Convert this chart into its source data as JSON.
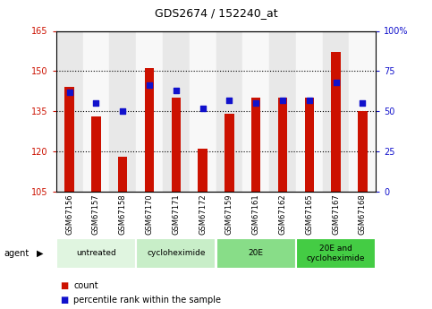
{
  "title": "GDS2674 / 152240_at",
  "samples": [
    "GSM67156",
    "GSM67157",
    "GSM67158",
    "GSM67170",
    "GSM67171",
    "GSM67172",
    "GSM67159",
    "GSM67161",
    "GSM67162",
    "GSM67165",
    "GSM67167",
    "GSM67168"
  ],
  "counts": [
    144,
    133,
    118,
    151,
    140,
    121,
    134,
    140,
    140,
    140,
    157,
    135
  ],
  "percentiles": [
    62,
    55,
    50,
    66,
    63,
    52,
    57,
    55,
    57,
    57,
    68,
    55
  ],
  "ylim_left": [
    105,
    165
  ],
  "ylim_right": [
    0,
    100
  ],
  "yticks_left": [
    105,
    120,
    135,
    150,
    165
  ],
  "yticks_right": [
    0,
    25,
    50,
    75,
    100
  ],
  "ytick_labels_left": [
    "105",
    "120",
    "135",
    "150",
    "165"
  ],
  "ytick_labels_right": [
    "0",
    "25",
    "50",
    "75",
    "100%"
  ],
  "bar_color": "#cc1100",
  "dot_color": "#1111cc",
  "bg_color": "#ffffff",
  "agent_groups": [
    {
      "label": "untreated",
      "span": [
        0,
        3
      ],
      "color": "#e0f5e0"
    },
    {
      "label": "cycloheximide",
      "span": [
        3,
        6
      ],
      "color": "#c8eec8"
    },
    {
      "label": "20E",
      "span": [
        6,
        9
      ],
      "color": "#88dd88"
    },
    {
      "label": "20E and\ncycloheximide",
      "span": [
        9,
        12
      ],
      "color": "#44cc44"
    }
  ]
}
